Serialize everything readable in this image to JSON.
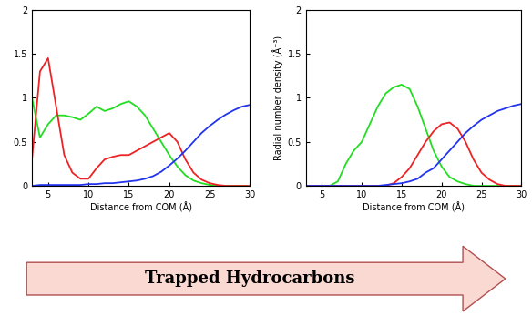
{
  "chart_data": [
    {
      "type": "line",
      "x": [
        3,
        4,
        5,
        6,
        7,
        8,
        9,
        10,
        11,
        12,
        13,
        14,
        15,
        16,
        17,
        18,
        19,
        20,
        21,
        22,
        23,
        24,
        25,
        26,
        27,
        28,
        29,
        30
      ],
      "series": [
        {
          "color": "#22dd22",
          "values": [
            1.0,
            0.55,
            0.7,
            0.8,
            0.8,
            0.78,
            0.75,
            0.82,
            0.9,
            0.85,
            0.88,
            0.93,
            0.96,
            0.9,
            0.8,
            0.65,
            0.5,
            0.35,
            0.22,
            0.12,
            0.06,
            0.03,
            0.01,
            0,
            0,
            0,
            0,
            0
          ]
        },
        {
          "color": "#ee2222",
          "values": [
            0.3,
            1.3,
            1.45,
            0.9,
            0.35,
            0.15,
            0.08,
            0.08,
            0.2,
            0.3,
            0.33,
            0.35,
            0.35,
            0.4,
            0.45,
            0.5,
            0.55,
            0.6,
            0.5,
            0.3,
            0.15,
            0.07,
            0.03,
            0.01,
            0,
            0,
            0,
            0
          ]
        },
        {
          "color": "#2233ee",
          "values": [
            0,
            0.01,
            0.01,
            0.01,
            0.01,
            0.01,
            0.01,
            0.02,
            0.02,
            0.03,
            0.03,
            0.04,
            0.05,
            0.06,
            0.08,
            0.11,
            0.16,
            0.23,
            0.31,
            0.4,
            0.5,
            0.6,
            0.68,
            0.75,
            0.81,
            0.86,
            0.9,
            0.92
          ]
        }
      ],
      "x_label": "Distance from COM (Å)",
      "xlim": [
        3,
        30
      ],
      "xticks": [
        5,
        10,
        15,
        20,
        25,
        30
      ],
      "ylim": [
        0,
        2
      ],
      "yticks": [
        0,
        0.5,
        1,
        1.5,
        2
      ]
    },
    {
      "type": "line",
      "x": [
        3,
        4,
        5,
        6,
        7,
        8,
        9,
        10,
        11,
        12,
        13,
        14,
        15,
        16,
        17,
        18,
        19,
        20,
        21,
        22,
        23,
        24,
        25,
        26,
        27,
        28,
        29,
        30
      ],
      "series": [
        {
          "color": "#22dd22",
          "values": [
            0,
            0,
            0,
            0,
            0.05,
            0.25,
            0.4,
            0.5,
            0.7,
            0.9,
            1.05,
            1.12,
            1.15,
            1.1,
            0.9,
            0.65,
            0.4,
            0.22,
            0.1,
            0.05,
            0.02,
            0,
            0,
            0,
            0,
            0,
            0,
            0
          ]
        },
        {
          "color": "#ee2222",
          "values": [
            0,
            0,
            0,
            0,
            0,
            0,
            0,
            0,
            0,
            0,
            0,
            0.03,
            0.1,
            0.2,
            0.35,
            0.5,
            0.62,
            0.7,
            0.72,
            0.65,
            0.5,
            0.3,
            0.15,
            0.07,
            0.02,
            0,
            0,
            0
          ]
        },
        {
          "color": "#2233ee",
          "values": [
            0,
            0,
            0,
            0,
            0,
            0,
            0,
            0,
            0,
            0,
            0.01,
            0.02,
            0.03,
            0.05,
            0.08,
            0.15,
            0.2,
            0.3,
            0.4,
            0.5,
            0.6,
            0.68,
            0.75,
            0.8,
            0.85,
            0.88,
            0.91,
            0.93
          ]
        }
      ],
      "x_label": "Distance from COM (Å)",
      "y_label": "Radial number density (Å⁻³)",
      "xlim": [
        3,
        30
      ],
      "xticks": [
        5,
        10,
        15,
        20,
        25,
        30
      ],
      "ylim": [
        0,
        2
      ],
      "yticks": [
        0,
        0.5,
        1,
        1.5,
        2
      ]
    }
  ],
  "arrow_label": "Trapped Hydrocarbons"
}
